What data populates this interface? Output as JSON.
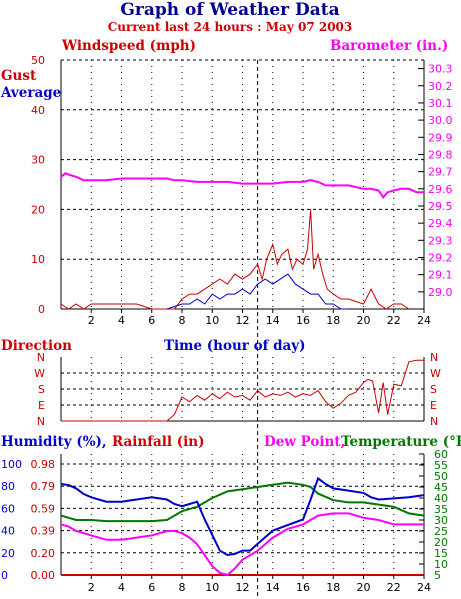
{
  "title": "Graph of Weather Data",
  "subtitle": "Current last 24 hours : May 07 2003",
  "colors": {
    "title": "#00008b",
    "subtitle": "#cc0000",
    "wind": "#cc0000",
    "gust": "#cc0000",
    "average": "#0000cc",
    "barometer": "#ff00ff",
    "direction": "#cc0000",
    "humidity": "#0000cc",
    "rainfall": "#cc0000",
    "dewpoint": "#ff00ff",
    "temperature": "#007700",
    "axis": "#000000"
  },
  "chart_data": [
    {
      "type": "line",
      "labels": {
        "windspeed": "Windspeed (mph)",
        "barometer": "Barometer (in.)",
        "gust": "Gust",
        "average": "Average",
        "xlabel": "Time (hour of day)"
      },
      "xlim": [
        0,
        24
      ],
      "x_ticks": [
        "2",
        "4",
        "6",
        "8",
        "10",
        "12",
        "14",
        "16",
        "18",
        "20",
        "22",
        "24"
      ],
      "y_left_lim": [
        0,
        50
      ],
      "y_left_ticks": [
        "0",
        "10",
        "20",
        "30",
        "40",
        "50"
      ],
      "y_right_lim": [
        28.9,
        30.35
      ],
      "y_right_ticks": [
        "29.0",
        "29.1",
        "29.2",
        "29.3",
        "29.4",
        "29.5",
        "29.6",
        "29.7",
        "29.8",
        "29.9",
        "30.0",
        "30.1",
        "30.2",
        "30.3"
      ],
      "grid": true,
      "current_time_marker": 13,
      "series": [
        {
          "name": "Gust",
          "axis": "left",
          "x": [
            0,
            0.5,
            1,
            1.5,
            2,
            3,
            4,
            5,
            6,
            7,
            7.5,
            8,
            8.5,
            9,
            9.5,
            10,
            10.5,
            11,
            11.5,
            12,
            12.5,
            13,
            13.3,
            13.6,
            14,
            14.3,
            14.6,
            15,
            15.3,
            15.6,
            16,
            16.3,
            16.5,
            16.7,
            17,
            17.3,
            17.6,
            18,
            18.5,
            19,
            20,
            20.5,
            21,
            21.5,
            22,
            22.5,
            23
          ],
          "y": [
            1,
            0,
            1,
            0,
            1,
            1,
            1,
            1,
            0,
            0,
            0,
            2,
            3,
            3,
            4,
            5,
            6,
            5,
            7,
            6,
            7,
            9,
            6,
            10,
            13,
            9,
            11,
            12,
            8,
            10,
            9,
            12,
            20,
            8,
            11,
            7,
            4,
            3,
            2,
            2,
            1,
            4,
            1,
            0,
            1,
            1,
            0
          ]
        },
        {
          "name": "Average",
          "axis": "left",
          "x": [
            7,
            8,
            8.5,
            9,
            9.5,
            10,
            10.5,
            11,
            11.5,
            12,
            12.5,
            13,
            13.5,
            14,
            14.5,
            15,
            15.5,
            16,
            16.5,
            17,
            17.5,
            18,
            18.5,
            19
          ],
          "y": [
            0,
            1,
            1,
            2,
            1,
            3,
            2,
            3,
            3,
            4,
            3,
            5,
            6,
            5,
            6,
            7,
            5,
            4,
            3,
            3,
            1,
            1,
            0,
            0
          ]
        },
        {
          "name": "Barometer",
          "axis": "right",
          "x": [
            0,
            0.3,
            0.6,
            1,
            1.5,
            2,
            3,
            4,
            5,
            6,
            7,
            7.5,
            8,
            9,
            10,
            11,
            12,
            13,
            14,
            15,
            16,
            16.5,
            17,
            17.5,
            18,
            19,
            20,
            20.5,
            21,
            21.3,
            21.6,
            22,
            22.5,
            23,
            23.5,
            24
          ],
          "y": [
            29.67,
            29.69,
            29.68,
            29.67,
            29.65,
            29.65,
            29.65,
            29.66,
            29.66,
            29.66,
            29.66,
            29.65,
            29.65,
            29.64,
            29.64,
            29.64,
            29.63,
            29.63,
            29.63,
            29.64,
            29.64,
            29.65,
            29.64,
            29.62,
            29.62,
            29.62,
            29.6,
            29.6,
            29.59,
            29.55,
            29.58,
            29.59,
            29.6,
            29.6,
            29.58,
            29.58
          ]
        }
      ]
    },
    {
      "type": "line",
      "labels": {
        "direction": "Direction"
      },
      "xlim": [
        0,
        24
      ],
      "directions": [
        "N",
        "W",
        "S",
        "E",
        "N"
      ],
      "series": [
        {
          "name": "Direction",
          "x": [
            0,
            1,
            2,
            3,
            4,
            5,
            6,
            7,
            7.5,
            8,
            8.5,
            9,
            9.5,
            10,
            10.5,
            11,
            11.5,
            12,
            12.5,
            13,
            13.5,
            14,
            14.5,
            15,
            15.5,
            16,
            16.5,
            17,
            17.5,
            18,
            18.5,
            19,
            19.5,
            20,
            20.3,
            20.6,
            21,
            21.3,
            21.6,
            22,
            22.5,
            23,
            23.5,
            24
          ],
          "y": [
            0,
            0,
            0,
            0,
            0,
            0,
            0,
            0,
            0.4,
            1.5,
            1.2,
            1.6,
            1.3,
            1.7,
            1.4,
            1.8,
            1.5,
            1.6,
            1.3,
            1.9,
            1.5,
            1.7,
            1.6,
            1.8,
            1.5,
            1.7,
            1.6,
            1.9,
            1.2,
            0.8,
            1.1,
            1.6,
            1.8,
            2.4,
            2.6,
            2.5,
            0.5,
            2.4,
            0.4,
            2.3,
            2.2,
            3.7,
            3.8,
            3.8
          ]
        }
      ]
    },
    {
      "type": "line",
      "labels": {
        "humidity": "Humidity (%),",
        "rainfall": "Rainfall (in)",
        "dewpoint": "Dew Point,",
        "temperature": "Temperature (°F)"
      },
      "xlim": [
        0,
        24
      ],
      "humidity_ticks": [
        "0",
        "20",
        "40",
        "60",
        "80",
        "100"
      ],
      "rainfall_ticks": [
        "0.00",
        "0.20",
        "0.39",
        "0.59",
        "0.79",
        "0.98"
      ],
      "temp_ticks": [
        "5",
        "10",
        "15",
        "20",
        "25",
        "30",
        "35",
        "40",
        "45",
        "50",
        "55",
        "60"
      ],
      "series": [
        {
          "name": "Humidity",
          "axis": "humidity",
          "x": [
            0,
            0.5,
            1,
            1.5,
            2,
            3,
            4,
            5,
            6,
            7,
            7.5,
            8,
            8.5,
            9,
            9.5,
            10,
            10.5,
            11,
            11.5,
            12,
            12.5,
            13,
            14,
            15,
            16,
            16.5,
            17,
            17.5,
            18,
            19,
            20,
            20.5,
            21,
            22,
            23,
            24
          ],
          "y": [
            82,
            81,
            78,
            73,
            70,
            66,
            66,
            68,
            70,
            68,
            64,
            62,
            64,
            66,
            50,
            36,
            22,
            18,
            19,
            22,
            22,
            28,
            40,
            45,
            50,
            68,
            87,
            82,
            78,
            76,
            74,
            70,
            68,
            69,
            70,
            72
          ]
        },
        {
          "name": "Temperature",
          "axis": "temp",
          "x": [
            0,
            0.5,
            1,
            2,
            3,
            4,
            5,
            6,
            7,
            7.5,
            8,
            9,
            10,
            11,
            12,
            13,
            14,
            15,
            16,
            16.5,
            17,
            18,
            19,
            20,
            21,
            22,
            23,
            24
          ],
          "y": [
            32,
            31,
            30,
            30,
            29.5,
            29.5,
            29.5,
            29.5,
            30,
            32,
            34,
            36,
            40,
            43,
            44,
            45,
            46,
            47,
            46,
            45,
            42,
            39,
            38,
            38,
            37,
            36,
            33,
            32
          ]
        },
        {
          "name": "Dew Point",
          "axis": "temp",
          "x": [
            0,
            0.5,
            1,
            2,
            3,
            4,
            5,
            6,
            7,
            7.5,
            8,
            8.5,
            9,
            9.5,
            10,
            10.5,
            11,
            11.5,
            12,
            13,
            14,
            15,
            16,
            16.5,
            17,
            18,
            19,
            20,
            21,
            22,
            23,
            24
          ],
          "y": [
            28,
            27,
            25,
            23,
            21,
            21,
            22,
            23,
            25,
            25,
            24,
            22,
            19,
            14,
            9,
            6,
            5,
            8,
            12,
            16,
            22,
            26,
            28,
            30,
            32,
            33,
            33,
            31,
            30,
            28,
            28,
            28
          ]
        }
      ]
    }
  ]
}
